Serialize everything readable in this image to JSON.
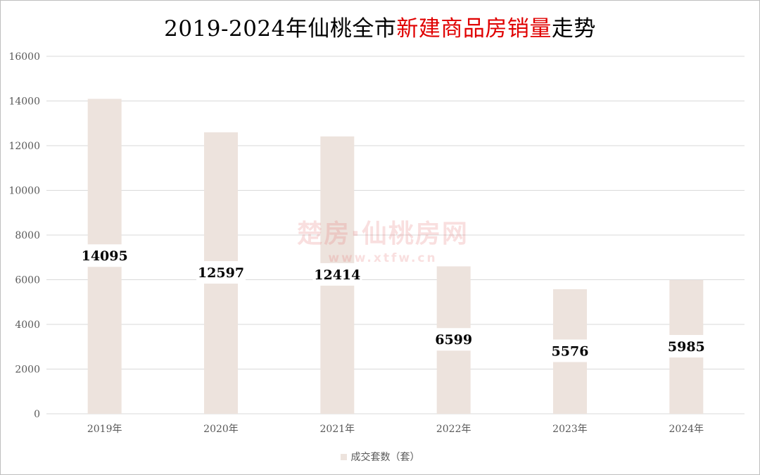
{
  "chart_data": {
    "type": "bar",
    "title_parts": [
      {
        "text": "2019-2024年仙桃全市",
        "highlight": false
      },
      {
        "text": "新建商品房销量",
        "highlight": true
      },
      {
        "text": "走势",
        "highlight": false
      }
    ],
    "categories": [
      "2019年",
      "2020年",
      "2021年",
      "2022年",
      "2023年",
      "2024年"
    ],
    "series": [
      {
        "name": "成交套数（套）",
        "values": [
          14095,
          12597,
          12414,
          6599,
          5576,
          5985
        ]
      }
    ],
    "ylim": [
      0,
      16000
    ],
    "yticks": [
      0,
      2000,
      4000,
      6000,
      8000,
      10000,
      12000,
      14000,
      16000
    ],
    "grid": true,
    "legend_position": "bottom",
    "colors": {
      "bar": "#ede3dd",
      "grid": "#d9d9d9",
      "title_highlight": "#e00000",
      "axis_text": "#595959"
    }
  },
  "watermark": {
    "main": "楚房·仙桃房网",
    "sub": "www.xtfw.cn"
  }
}
